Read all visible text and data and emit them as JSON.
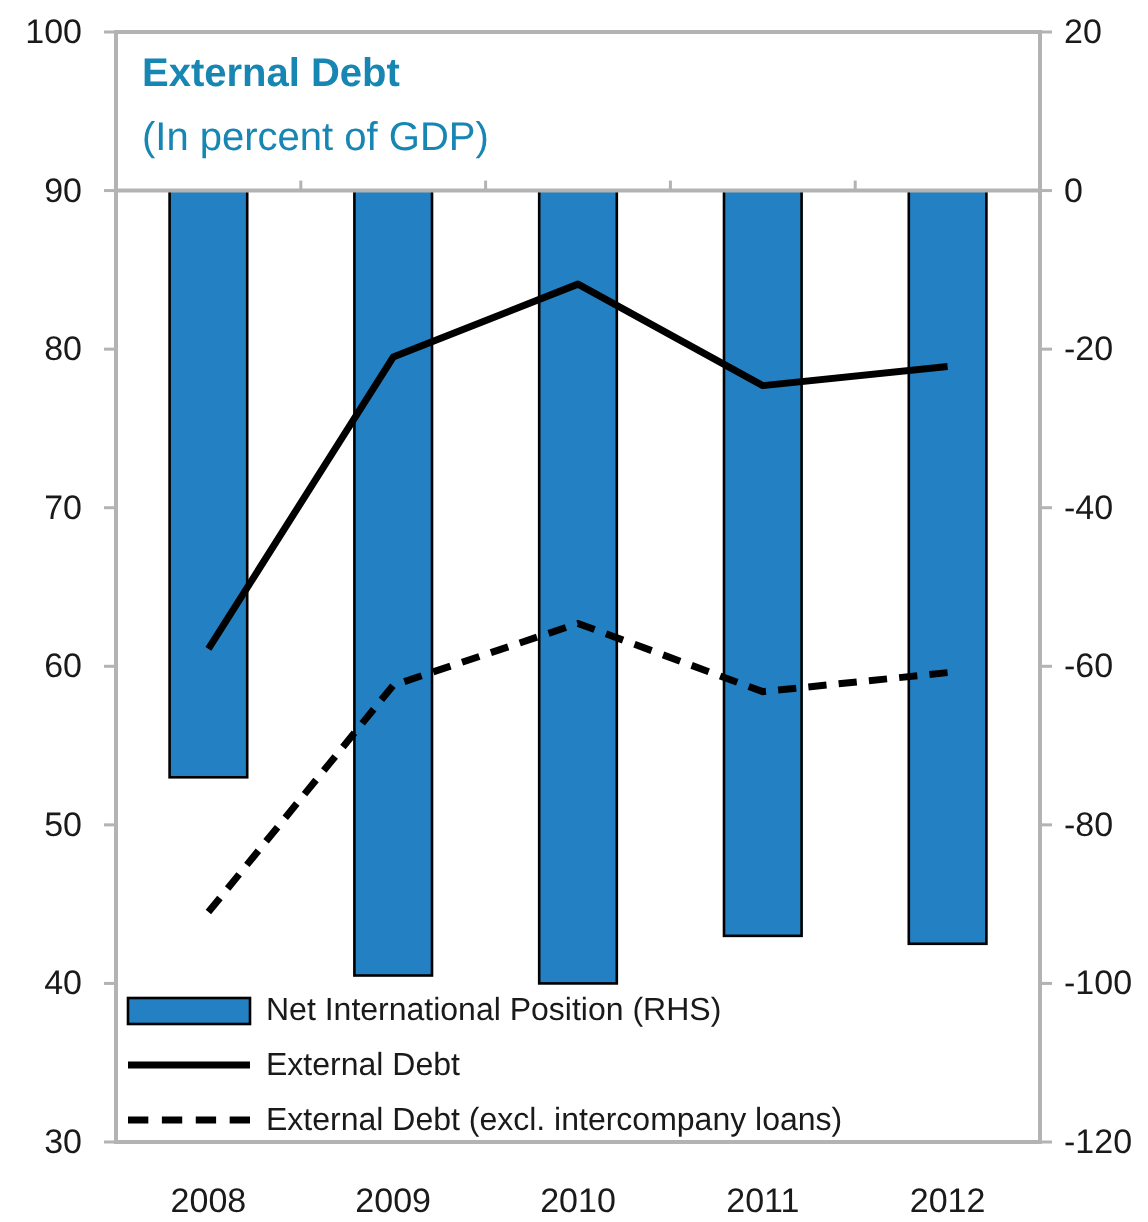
{
  "chart_data": {
    "type": "bar",
    "title": "External Debt",
    "subtitle": "(In percent of GDP)",
    "categories": [
      "2008",
      "2009",
      "2010",
      "2011",
      "2012"
    ],
    "series": [
      {
        "name": "Net International Position (RHS)",
        "axis": "y2",
        "color": "#2280c3",
        "values": [
          -74,
          -99,
          -100,
          -94,
          -95
        ]
      },
      {
        "name": "External Debt",
        "type": "line",
        "color": "#000000",
        "values": [
          61.1,
          79.5,
          84.1,
          77.7,
          78.9
        ]
      },
      {
        "name": "External Debt (excl. intercompany loans)",
        "type": "line",
        "color": "#000000",
        "line_style": "dashed",
        "values": [
          44.5,
          58.8,
          62.7,
          58.4,
          59.6
        ]
      }
    ],
    "ylim": [
      30,
      100
    ],
    "yticks": [
      30,
      40,
      50,
      60,
      70,
      80,
      90,
      100
    ],
    "y2lim": [
      -120,
      20
    ],
    "y2ticks": [
      20,
      0,
      -20,
      -40,
      -60,
      -80,
      -100,
      -120
    ],
    "legend": "bottom left"
  }
}
